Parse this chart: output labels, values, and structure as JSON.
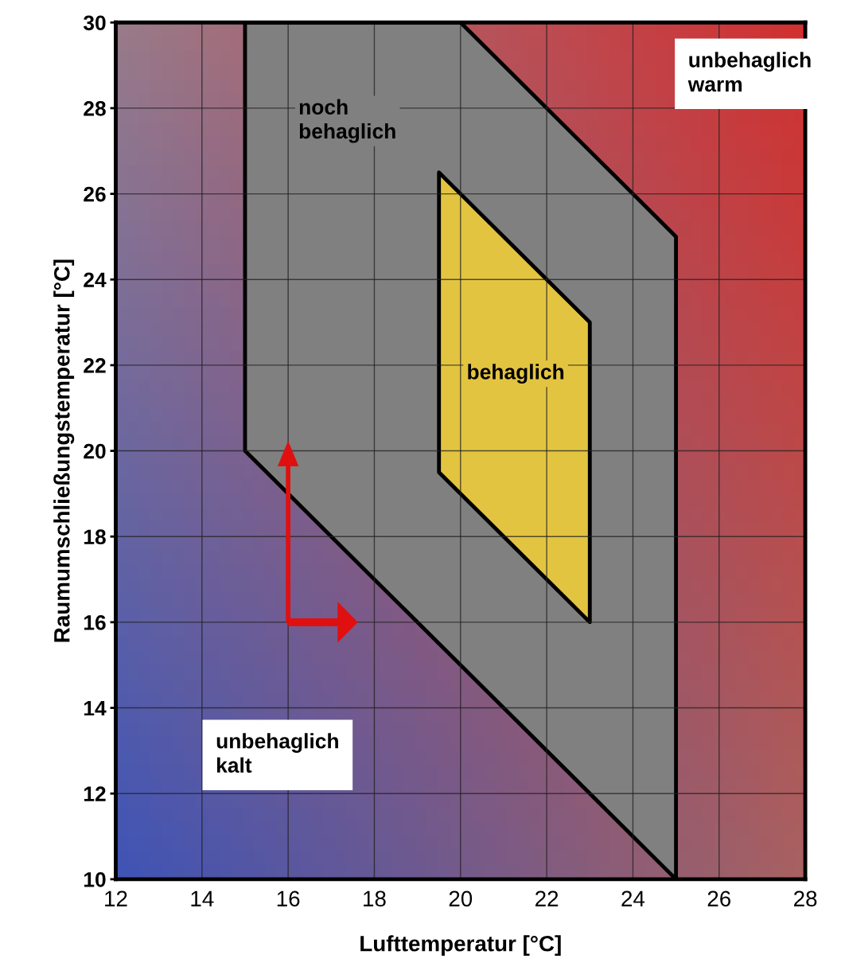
{
  "chart_data": {
    "type": "area",
    "xlabel": "Lufttemperatur [°C]",
    "ylabel": "Raumumschließungstemperatur [°C]",
    "series": [
      {
        "color": "#808080",
        "x": [
          15,
          20,
          25,
          25,
          15,
          15
        ],
        "values": [
          30,
          30,
          25,
          10,
          20,
          30
        ]
      },
      {
        "color": "#e3c440",
        "x": [
          19.5,
          23,
          23,
          19.5,
          19.5
        ],
        "values": [
          26.5,
          23,
          16,
          19.5,
          26.5
        ]
      }
    ],
    "xlim": [
      12,
      28
    ],
    "xticks": [
      12,
      14,
      16,
      18,
      20,
      22,
      24,
      26,
      28
    ],
    "ylim": [
      10,
      30
    ],
    "yticks": [
      10,
      12,
      14,
      16,
      18,
      20,
      22,
      24,
      26,
      28,
      30
    ],
    "grid": true,
    "annotations": [
      "unbehaglich\nwarm",
      "noch\nbehaglich",
      "behaglich",
      "unbehaglich\nkalt"
    ]
  }
}
